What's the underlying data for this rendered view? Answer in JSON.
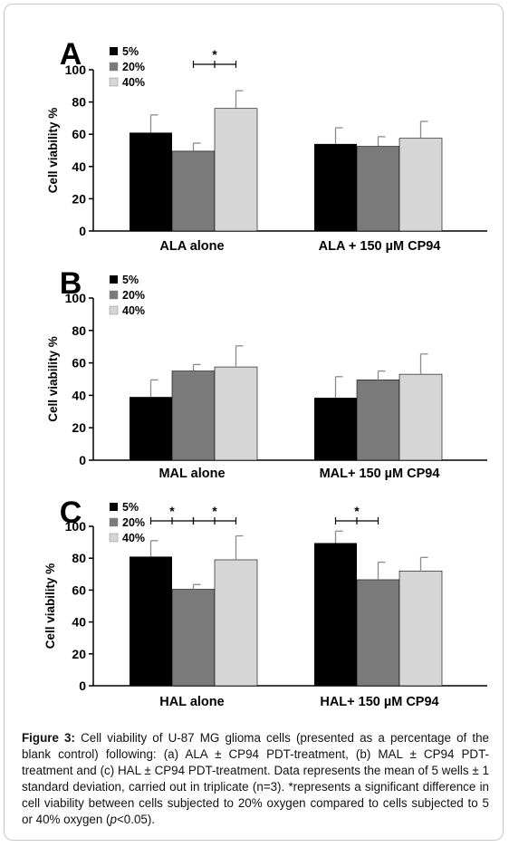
{
  "figure": {
    "caption_label": "Figure 3:",
    "caption_parts": [
      {
        "text": " Cell viability of U-87 MG glioma cells (presented as a percentage of the blank control) following: (a) ALA ± CP94 PDT-treatment, (b) MAL ± CP94 PDT-treatment and (c) HAL ± CP94 PDT-treatment. Data represents the mean of 5 wells ± 1 standard deviation, carried out in triplicate (n=3). *represents a significant difference in cell viability between cells subjected to 20% oxygen compared to cells subjected to 5 or 40% oxygen (",
        "italic": false
      },
      {
        "text": "p",
        "italic": true
      },
      {
        "text": "<0.05).",
        "italic": false
      }
    ]
  },
  "chart_data": [
    {
      "type": "bar",
      "panel_label": "A",
      "ylabel": "Cell viability %",
      "ylim": [
        0,
        100
      ],
      "yticks": [
        0,
        20,
        40,
        60,
        80,
        100
      ],
      "categories": [
        "ALA alone",
        "ALA + 150 µM CP94"
      ],
      "series": [
        {
          "name": "5%",
          "color": "#000000",
          "values": [
            61,
            54
          ],
          "errors": [
            11,
            10
          ]
        },
        {
          "name": "20%",
          "color": "#7a7a7a",
          "values": [
            49.5,
            52.5
          ],
          "errors": [
            5,
            6
          ]
        },
        {
          "name": "40%",
          "color": "#d6d6d6",
          "values": [
            76,
            57.5
          ],
          "errors": [
            11,
            10.5
          ]
        }
      ],
      "significance": [
        {
          "category": 0,
          "from_series": 1,
          "to_series": 2,
          "label": "*"
        }
      ],
      "legend": "top-left"
    },
    {
      "type": "bar",
      "panel_label": "B",
      "ylabel": "Cell viability %",
      "ylim": [
        0,
        100
      ],
      "yticks": [
        0,
        20,
        40,
        60,
        80,
        100
      ],
      "categories": [
        "MAL alone",
        "MAL+ 150 µM CP94"
      ],
      "series": [
        {
          "name": "5%",
          "color": "#000000",
          "values": [
            39,
            38.5
          ],
          "errors": [
            10.5,
            13
          ]
        },
        {
          "name": "20%",
          "color": "#7a7a7a",
          "values": [
            55,
            49.5
          ],
          "errors": [
            4,
            5.5
          ]
        },
        {
          "name": "40%",
          "color": "#d6d6d6",
          "values": [
            57.5,
            53
          ],
          "errors": [
            13,
            12.5
          ]
        }
      ],
      "significance": [],
      "legend": "top-left"
    },
    {
      "type": "bar",
      "panel_label": "C",
      "ylabel": "Cell viability %",
      "ylim": [
        0,
        100
      ],
      "yticks": [
        0,
        20,
        40,
        60,
        80,
        100
      ],
      "categories": [
        "HAL alone",
        "HAL+ 150 µM CP94"
      ],
      "series": [
        {
          "name": "5%",
          "color": "#000000",
          "values": [
            81,
            89.5
          ],
          "errors": [
            10,
            7.5
          ]
        },
        {
          "name": "20%",
          "color": "#7a7a7a",
          "values": [
            60.5,
            66.5
          ],
          "errors": [
            3,
            11
          ]
        },
        {
          "name": "40%",
          "color": "#d6d6d6",
          "values": [
            79,
            72
          ],
          "errors": [
            15,
            8.5
          ]
        }
      ],
      "significance": [
        {
          "category": 0,
          "from_series": 0,
          "to_series": 1,
          "label": "*"
        },
        {
          "category": 0,
          "from_series": 1,
          "to_series": 2,
          "label": "*"
        },
        {
          "category": 1,
          "from_series": 0,
          "to_series": 1,
          "label": "*"
        }
      ],
      "legend": "top-left"
    }
  ]
}
